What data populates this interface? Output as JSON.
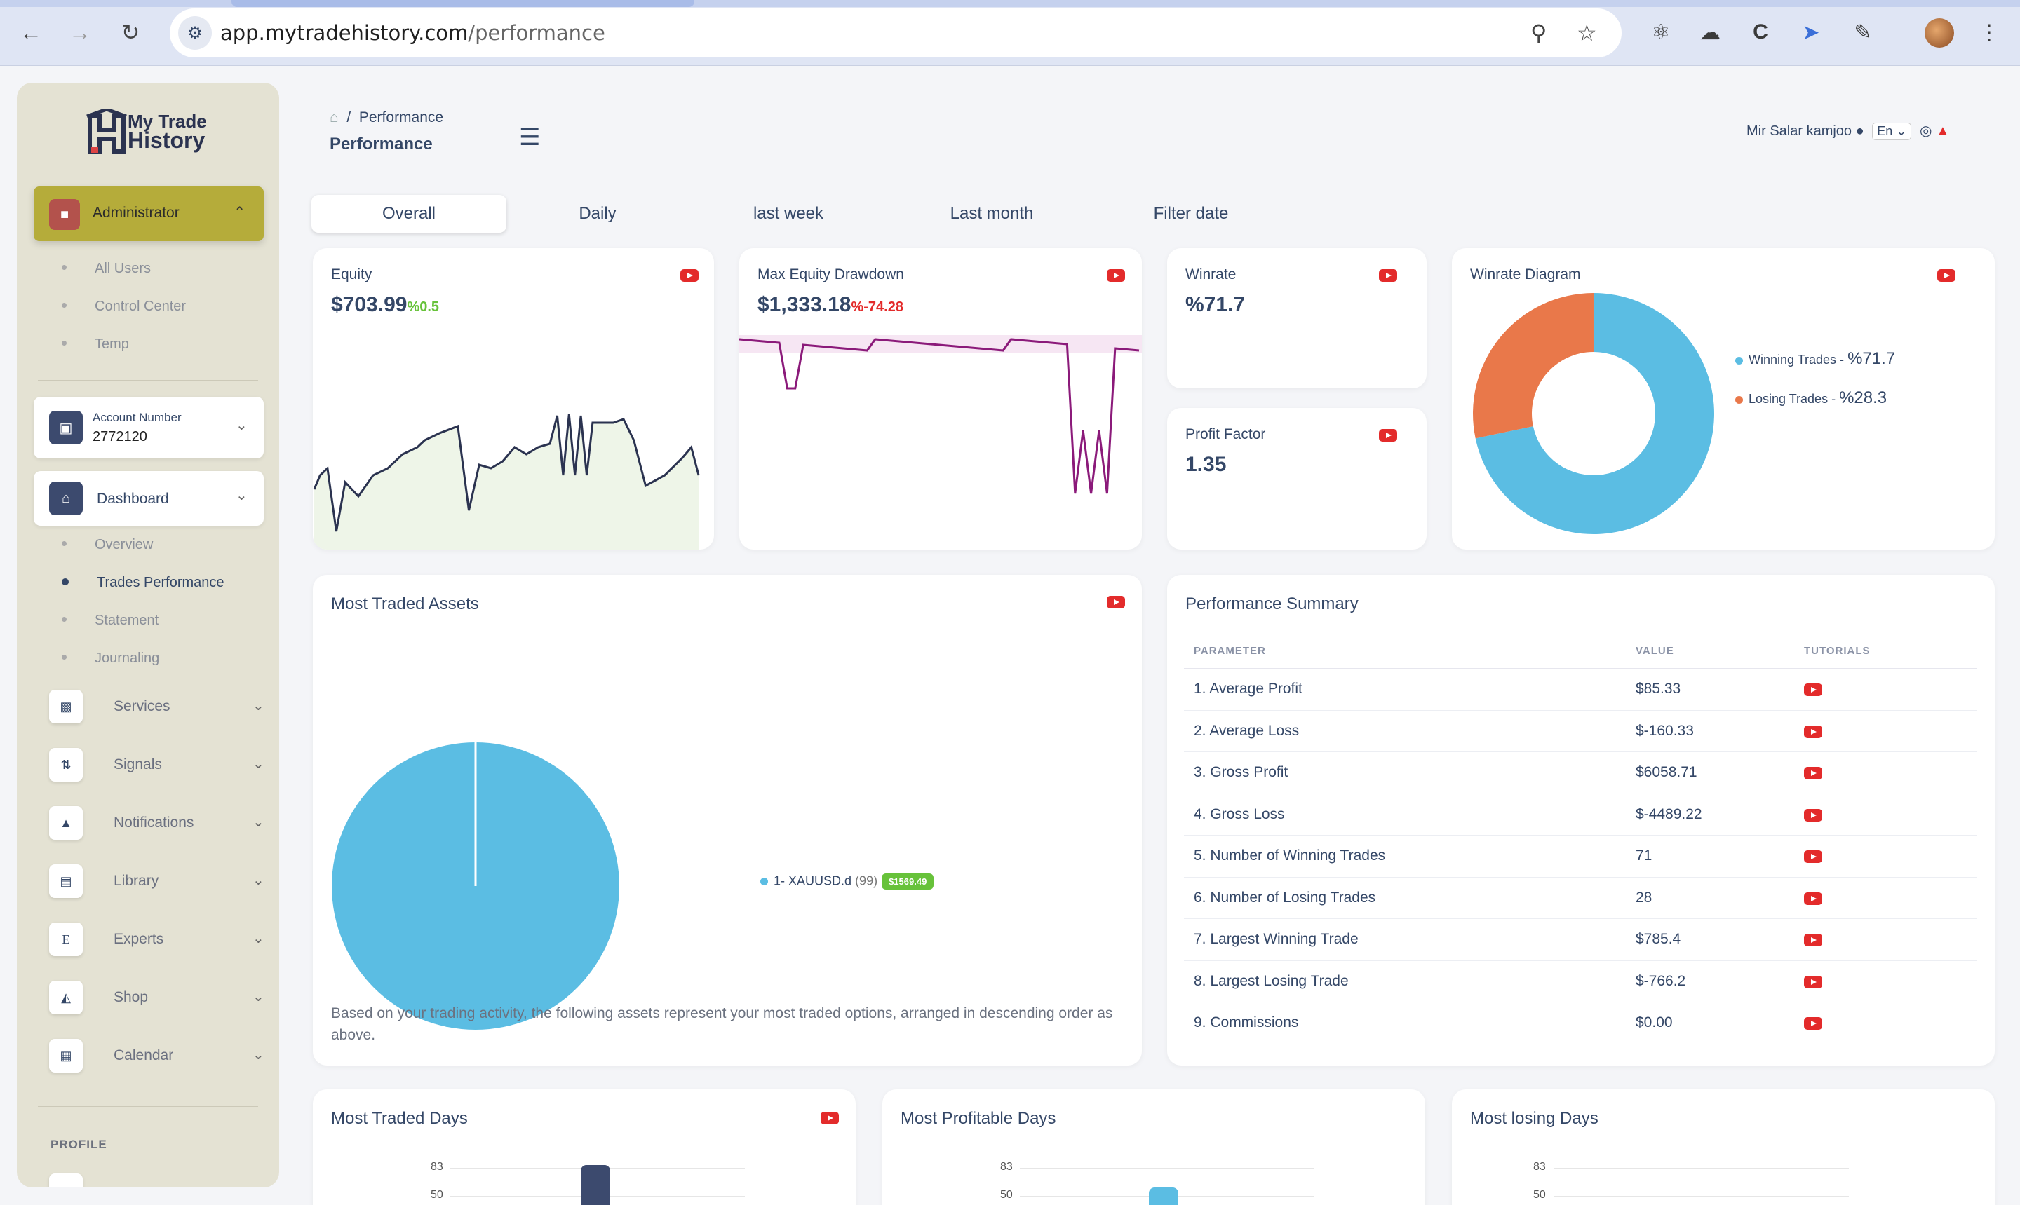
{
  "browser": {
    "url_host": "app.mytradehistory.com",
    "url_path": "/performance"
  },
  "sidebar": {
    "logo_line1": "My Trade",
    "logo_line2": "History",
    "admin_label": "Administrator",
    "admin_items": [
      "All Users",
      "Control Center",
      "Temp"
    ],
    "account_label": "Account Number",
    "account_number": "2772120",
    "dashboard_label": "Dashboard",
    "dashboard_items": [
      "Overview",
      "Trades Performance",
      "Statement",
      "Journaling"
    ],
    "menu": [
      {
        "label": "Services",
        "icon": "box-icon"
      },
      {
        "label": "Signals",
        "icon": "arrows-icon"
      },
      {
        "label": "Notifications",
        "icon": "bell-icon"
      },
      {
        "label": "Library",
        "icon": "book-icon"
      },
      {
        "label": "Experts",
        "icon": "letter-e-icon"
      },
      {
        "label": "Shop",
        "icon": "cart-icon"
      },
      {
        "label": "Calendar",
        "icon": "calendar-icon"
      }
    ],
    "profile_heading": "PROFILE"
  },
  "header": {
    "breadcrumb": "Performance",
    "title": "Performance",
    "user_name": "Mir Salar kamjoo",
    "language": "En"
  },
  "tabs": [
    "Overall",
    "Daily",
    "last week",
    "Last month",
    "Filter date"
  ],
  "equity": {
    "title": "Equity",
    "value": "$703.99",
    "change": "%0.5"
  },
  "drawdown": {
    "title": "Max Equity Drawdown",
    "value": "$1,333.18",
    "change": "%-74.28"
  },
  "winrate": {
    "title": "Winrate",
    "value": "%71.7"
  },
  "profit_factor": {
    "title": "Profit Factor",
    "value": "1.35"
  },
  "winrate_diagram": {
    "title": "Winrate Diagram",
    "win_label": "Winning Trades - ",
    "win_value": "%71.7",
    "lose_label": "Losing Trades - ",
    "lose_value": "%28.3"
  },
  "most_traded": {
    "title": "Most Traded Assets",
    "asset_label": "1- XAUUSD.d",
    "asset_count": "(99)",
    "asset_badge": "$1569.49",
    "note": "Based on your trading activity, the following assets represent your most traded options, arranged in descending order as above."
  },
  "summary": {
    "title": "Performance Summary",
    "headers": [
      "PARAMETER",
      "VALUE",
      "TUTORIALS"
    ],
    "rows": [
      {
        "p": "1. Average Profit",
        "v": "$85.33"
      },
      {
        "p": "2. Average Loss",
        "v": "$-160.33"
      },
      {
        "p": "3. Gross Profit",
        "v": "$6058.71"
      },
      {
        "p": "4. Gross Loss",
        "v": "$-4489.22"
      },
      {
        "p": "5. Number of Winning Trades",
        "v": "71"
      },
      {
        "p": "6. Number of Losing Trades",
        "v": "28"
      },
      {
        "p": "7. Largest Winning Trade",
        "v": "$785.4"
      },
      {
        "p": "8. Largest Losing Trade",
        "v": "$-766.2"
      },
      {
        "p": "9. Commissions",
        "v": "$0.00"
      }
    ]
  },
  "bottom": {
    "traded_days": "Most Traded Days",
    "profitable_days": "Most Profitable Days",
    "losing_days": "Most losing Days",
    "tick_top": "83",
    "tick_mid": "50"
  },
  "colors": {
    "accent": "#b5ac3a",
    "win": "#5bbde3",
    "lose": "#e9784a",
    "positive": "#67c23a",
    "negative": "#e32b2b"
  },
  "chart_data": [
    {
      "type": "pie",
      "title": "Winrate Diagram",
      "categories": [
        "Winning Trades",
        "Losing Trades"
      ],
      "values": [
        71.7,
        28.3
      ]
    },
    {
      "type": "pie",
      "title": "Most Traded Assets",
      "categories": [
        "XAUUSD.d"
      ],
      "values": [
        99
      ]
    }
  ]
}
